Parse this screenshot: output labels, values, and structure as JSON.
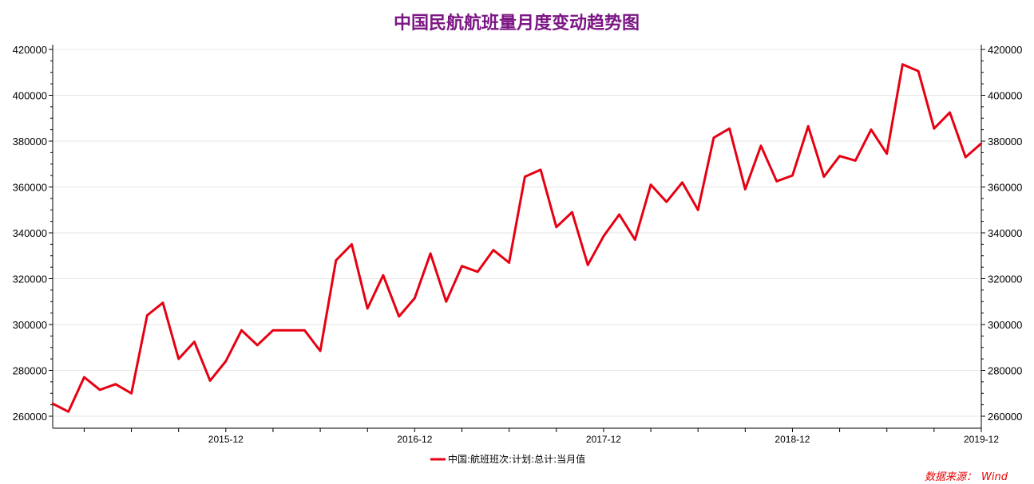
{
  "chart_data": {
    "type": "line",
    "title": "中国民航航班量月度变动趋势图",
    "source_label": "数据来源：",
    "source_value": "Wind",
    "xlabel": "",
    "ylabel": "",
    "ylim": [
      255000,
      425000
    ],
    "y_ticks": [
      "420000",
      "400000",
      "380000",
      "360000",
      "340000",
      "320000",
      "300000",
      "280000",
      "260000"
    ],
    "x_ticks": [
      "2015-12",
      "2016-12",
      "2017-12",
      "2018-12",
      "2019-12"
    ],
    "grid": true,
    "legend_position": "bottom-center",
    "series_color": "#e60012",
    "x": [
      "2015-01",
      "2015-02",
      "2015-03",
      "2015-04",
      "2015-05",
      "2015-06",
      "2015-07",
      "2015-08",
      "2015-09",
      "2015-10",
      "2015-11",
      "2015-12",
      "2016-01",
      "2016-02",
      "2016-03",
      "2016-04",
      "2016-05",
      "2016-06",
      "2016-07",
      "2016-08",
      "2016-09",
      "2016-10",
      "2016-11",
      "2016-12",
      "2017-01",
      "2017-02",
      "2017-03",
      "2017-04",
      "2017-05",
      "2017-06",
      "2017-07",
      "2017-08",
      "2017-09",
      "2017-10",
      "2017-11",
      "2017-12",
      "2018-01",
      "2018-02",
      "2018-03",
      "2018-04",
      "2018-05",
      "2018-06",
      "2018-07",
      "2018-08",
      "2018-09",
      "2018-10",
      "2018-11",
      "2018-12",
      "2019-01",
      "2019-02",
      "2019-03",
      "2019-04",
      "2019-05",
      "2019-06",
      "2019-07",
      "2019-08",
      "2019-09",
      "2019-10",
      "2019-11",
      "2019-12"
    ],
    "series": [
      {
        "name": "中国:航班班次:计划:总计:当月值",
        "values": [
          265500,
          262000,
          277000,
          271500,
          274000,
          270000,
          304000,
          309500,
          285000,
          292500,
          275500,
          284000,
          297500,
          291000,
          297500,
          297500,
          297500,
          288500,
          328000,
          335000,
          307000,
          321500,
          303500,
          311500,
          331000,
          310000,
          325500,
          323000,
          332500,
          327000,
          364500,
          367500,
          342500,
          349000,
          326000,
          338500,
          348000,
          337000,
          361000,
          353500,
          362000,
          350000,
          381500,
          385500,
          359000,
          378000,
          362500,
          365000,
          386500,
          364500,
          373500,
          371500,
          385000,
          374500,
          413500,
          410500,
          385500,
          392500,
          373000,
          379000
        ]
      }
    ]
  }
}
